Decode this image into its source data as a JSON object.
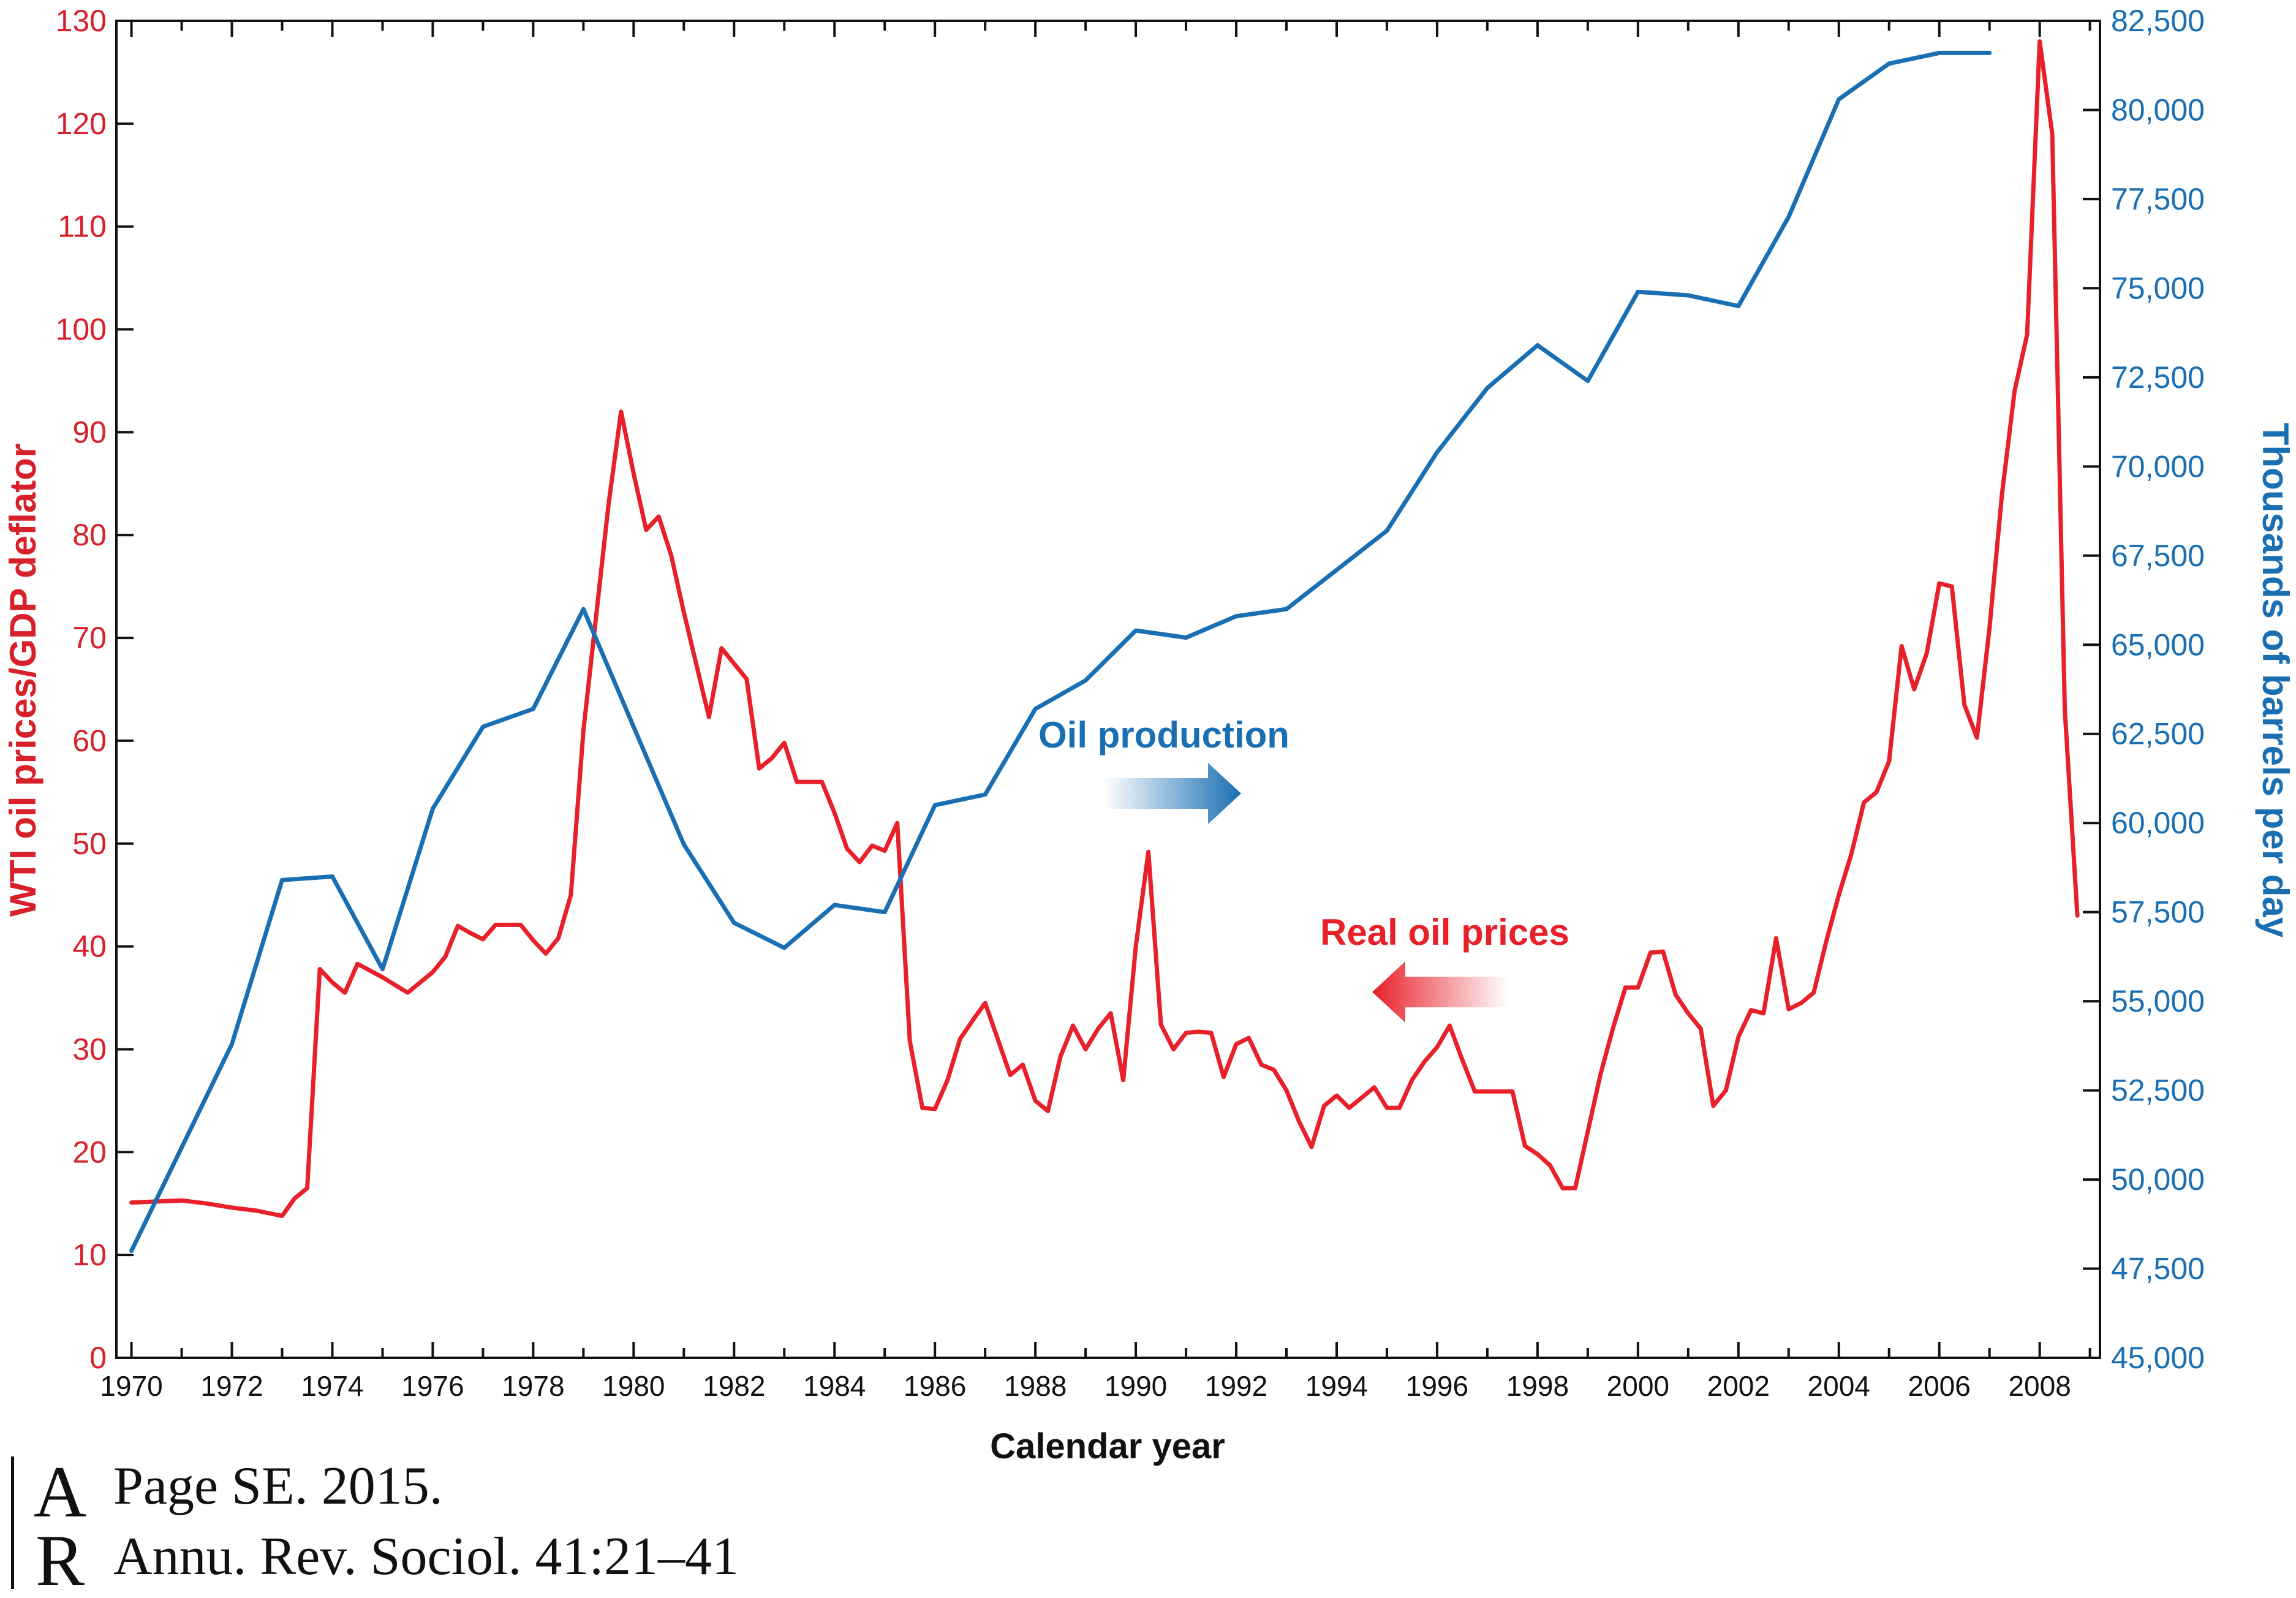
{
  "chart_data": {
    "type": "line",
    "xlabel": "Calendar year",
    "ylabel_left": "WTI oil prices/GDP deflator",
    "ylabel_right": "Thousands of barrels per day",
    "xlim": [
      1969.7,
      2009.2
    ],
    "ylim_left": [
      0,
      130
    ],
    "ylim_right": [
      45000,
      82500
    ],
    "x_ticks": [
      1970,
      1972,
      1974,
      1976,
      1978,
      1980,
      1982,
      1984,
      1986,
      1988,
      1990,
      1992,
      1994,
      1996,
      1998,
      2000,
      2002,
      2004,
      2006,
      2008
    ],
    "x_tick_labels": [
      "1970",
      "1972",
      "1974",
      "1976",
      "1978",
      "1980",
      "1982",
      "1984",
      "1986",
      "1988",
      "1990",
      "1992",
      "1994",
      "1996",
      "1998",
      "2000",
      "2002",
      "2004",
      "2006",
      "2008"
    ],
    "y_left_ticks": [
      0,
      10,
      20,
      30,
      40,
      50,
      60,
      70,
      80,
      90,
      100,
      110,
      120,
      130
    ],
    "y_left_tick_labels": [
      "0",
      "10",
      "20",
      "30",
      "40",
      "50",
      "60",
      "70",
      "80",
      "90",
      "100",
      "110",
      "120",
      "130"
    ],
    "y_right_ticks": [
      45000,
      47500,
      50000,
      52500,
      55000,
      57500,
      60000,
      62500,
      65000,
      67500,
      70000,
      72500,
      75000,
      77500,
      80000,
      82500
    ],
    "y_right_tick_labels": [
      "45,000",
      "47,500",
      "50,000",
      "52,500",
      "55,000",
      "57,500",
      "60,000",
      "62,500",
      "65,000",
      "67,500",
      "70,000",
      "72,500",
      "75,000",
      "77,500",
      "80,000",
      "82,500"
    ],
    "grid": false,
    "series": [
      {
        "name": "Real oil prices",
        "axis": "left",
        "color": "#e8202a",
        "x": [
          1970.0,
          1970.5,
          1971.0,
          1971.5,
          1972.0,
          1972.5,
          1973.0,
          1973.25,
          1973.5,
          1973.75,
          1974.0,
          1974.25,
          1974.5,
          1975.0,
          1975.5,
          1976.0,
          1976.25,
          1976.5,
          1976.75,
          1977.0,
          1977.25,
          1977.5,
          1977.75,
          1978.0,
          1978.25,
          1978.5,
          1978.75,
          1979.0,
          1979.25,
          1979.5,
          1979.75,
          1980.0,
          1980.25,
          1980.5,
          1980.75,
          1981.0,
          1981.5,
          1981.75,
          1982.0,
          1982.25,
          1982.5,
          1982.75,
          1983.0,
          1983.25,
          1983.5,
          1983.75,
          1984.0,
          1984.25,
          1984.5,
          1984.75,
          1985.0,
          1985.25,
          1985.5,
          1985.75,
          1986.0,
          1986.25,
          1986.5,
          1986.75,
          1987.0,
          1987.25,
          1987.5,
          1987.75,
          1988.0,
          1988.25,
          1988.5,
          1988.75,
          1989.0,
          1989.25,
          1989.5,
          1989.75,
          1990.0,
          1990.25,
          1990.5,
          1990.75,
          1991.0,
          1991.25,
          1991.5,
          1991.75,
          1992.0,
          1992.25,
          1992.5,
          1992.75,
          1993.0,
          1993.25,
          1993.5,
          1993.75,
          1994.0,
          1994.25,
          1994.5,
          1994.75,
          1995.0,
          1995.25,
          1995.5,
          1995.75,
          1996.0,
          1996.25,
          1996.5,
          1996.75,
          1997.0,
          1997.25,
          1997.5,
          1997.75,
          1998.0,
          1998.25,
          1998.5,
          1998.75,
          1999.0,
          1999.25,
          1999.5,
          1999.75,
          2000.0,
          2000.25,
          2000.5,
          2000.75,
          2001.0,
          2001.25,
          2001.5,
          2001.75,
          2002.0,
          2002.25,
          2002.5,
          2002.75,
          2003.0,
          2003.25,
          2003.5,
          2003.75,
          2004.0,
          2004.25,
          2004.5,
          2004.75,
          2005.0,
          2005.25,
          2005.5,
          2005.75,
          2006.0,
          2006.25,
          2006.5,
          2006.75,
          2007.0,
          2007.25,
          2007.5,
          2007.75,
          2008.0,
          2008.25,
          2008.5,
          2008.75
        ],
        "values": [
          15.1,
          15.2,
          15.3,
          15.0,
          14.6,
          14.3,
          13.8,
          15.5,
          16.5,
          37.8,
          36.5,
          35.5,
          38.3,
          37.0,
          35.5,
          37.5,
          39.0,
          42.0,
          41.3,
          40.7,
          42.1,
          42.1,
          42.1,
          40.6,
          39.3,
          40.8,
          45.0,
          61.0,
          72.0,
          83.0,
          92.0,
          86.0,
          80.5,
          81.8,
          78.0,
          72.5,
          62.3,
          69.0,
          67.5,
          66.0,
          57.3,
          58.3,
          59.8,
          56.0,
          56.0,
          56.0,
          53.0,
          49.5,
          48.2,
          49.8,
          49.3,
          52.0,
          30.8,
          24.3,
          24.2,
          27.0,
          31.0,
          32.8,
          34.5,
          31.0,
          27.5,
          28.5,
          25.0,
          24.0,
          29.3,
          32.3,
          30.0,
          32.0,
          33.5,
          27.0,
          40.0,
          49.2,
          32.4,
          30.0,
          31.6,
          31.7,
          31.6,
          27.3,
          30.5,
          31.1,
          28.5,
          28.0,
          26.0,
          23.0,
          20.5,
          24.5,
          25.5,
          24.3,
          25.3,
          26.3,
          24.3,
          24.3,
          27.0,
          28.8,
          30.2,
          32.3,
          29.0,
          25.9,
          25.9,
          25.9,
          25.9,
          20.6,
          19.8,
          18.7,
          16.5,
          16.5,
          22.0,
          27.5,
          32.0,
          36.0,
          36.0,
          39.4,
          39.5,
          35.3,
          33.5,
          32.0,
          24.5,
          26.0,
          31.2,
          33.8,
          33.5,
          40.8,
          33.9,
          34.5,
          35.5,
          40.5,
          45.0,
          49.0,
          54.0,
          55.0,
          58.0,
          69.2,
          65.0,
          68.5,
          75.3,
          75.0,
          63.5,
          60.3,
          71.0,
          84.0,
          94.0,
          99.5,
          128.0,
          119.0,
          63.0,
          43.0
        ]
      },
      {
        "name": "Oil production",
        "axis": "right",
        "color": "#1a6fb3",
        "x": [
          1970,
          1971,
          1972,
          1973,
          1974,
          1975,
          1976,
          1977,
          1978,
          1979,
          1980,
          1981,
          1982,
          1983,
          1984,
          1985,
          1986,
          1987,
          1988,
          1989,
          1990,
          1991,
          1992,
          1993,
          1994,
          1995,
          1996,
          1997,
          1998,
          1999,
          2000,
          2001,
          2002,
          2003,
          2004,
          2005,
          2006,
          2007
        ],
        "values": [
          48000,
          50900,
          53800,
          58400,
          58500,
          55900,
          60400,
          62700,
          63200,
          66000,
          62700,
          59400,
          57200,
          56500,
          57700,
          57500,
          60500,
          60800,
          63200,
          64000,
          65400,
          65200,
          65800,
          66000,
          67100,
          68200,
          70400,
          72200,
          73400,
          72400,
          74900,
          74800,
          74500,
          77000,
          80300,
          81300,
          81600,
          81600
        ]
      }
    ],
    "annotations": [
      {
        "text": "Oil production",
        "color": "#1a6fb3",
        "arrow": "right"
      },
      {
        "text": "Real oil prices",
        "color": "#e8202a",
        "arrow": "left"
      }
    ]
  },
  "citation": {
    "line1": "Page SE. 2015.",
    "line2": "Annu. Rev. Sociol. 41:21–41",
    "logo_letters": "AR"
  }
}
